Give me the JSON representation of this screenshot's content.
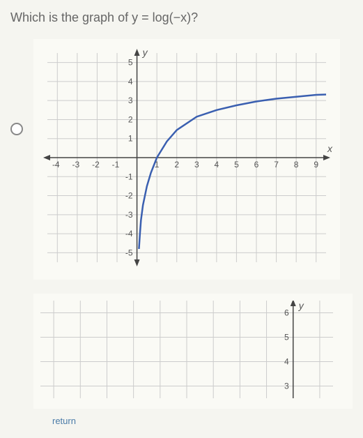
{
  "question": "Which is the graph of y = log(−x)?",
  "chart1": {
    "type": "line",
    "x_label": "x",
    "y_label": "y",
    "xlim": [
      -4.5,
      9.5
    ],
    "ylim": [
      -5.5,
      5.5
    ],
    "xticks": [
      -4,
      -3,
      -2,
      -1,
      1,
      2,
      3,
      4,
      5,
      6,
      7,
      8,
      9
    ],
    "yticks": [
      -5,
      -4,
      -3,
      -2,
      -1,
      1,
      2,
      3,
      4,
      5
    ],
    "grid_color": "#cccccc",
    "axis_color": "#444444",
    "curve_color": "#3a5fb0",
    "background_color": "#fafaf5",
    "curve_points": [
      [
        0.1,
        -4.8
      ],
      [
        0.15,
        -4
      ],
      [
        0.2,
        -3.3
      ],
      [
        0.3,
        -2.5
      ],
      [
        0.5,
        -1.5
      ],
      [
        0.7,
        -0.8
      ],
      [
        1,
        0
      ],
      [
        1.5,
        0.85
      ],
      [
        2,
        1.45
      ],
      [
        3,
        2.15
      ],
      [
        4,
        2.5
      ],
      [
        5,
        2.75
      ],
      [
        6,
        2.95
      ],
      [
        7,
        3.1
      ],
      [
        8,
        3.2
      ],
      [
        9,
        3.3
      ],
      [
        9.5,
        3.32
      ]
    ]
  },
  "chart2": {
    "type": "line-partial",
    "y_label": "y",
    "yticks_visible": [
      3,
      4,
      5,
      6
    ],
    "grid_color": "#cccccc",
    "axis_color": "#444444",
    "background_color": "#fafaf5"
  },
  "footer_text": "return"
}
